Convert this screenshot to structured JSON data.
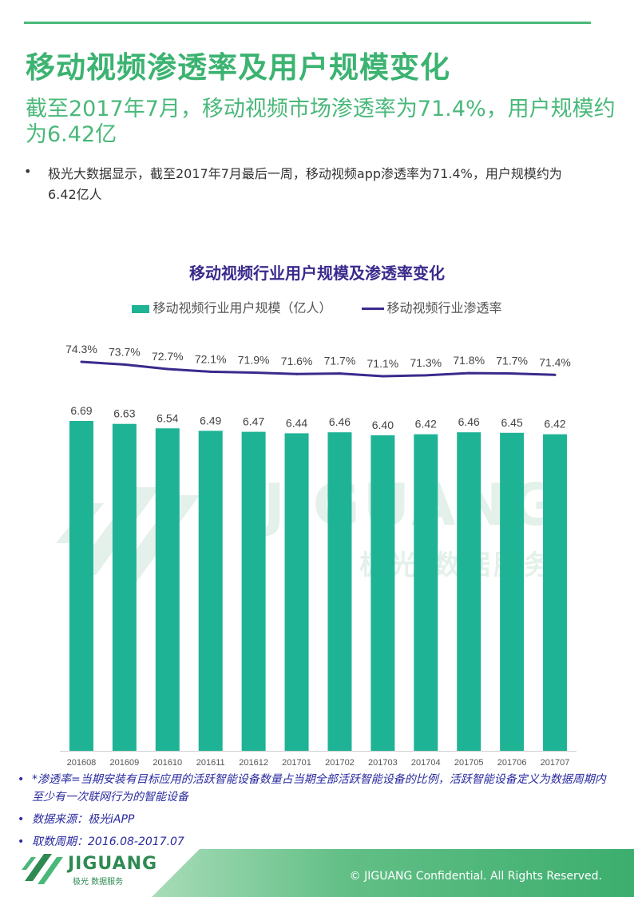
{
  "page": {
    "title": "移动视频渗透率及用户规模变化",
    "headline": "截至2017年7月，移动视频市场渗透率为71.4%，用户规模约为6.42亿",
    "bullet": "极光大数据显示，截至2017年7月最后一周，移动视频app渗透率为71.4%，用户规模约为6.42亿人"
  },
  "chart_data": {
    "type": "bar",
    "title": "移动视频行业用户规模及渗透率变化",
    "categories": [
      "201608",
      "201609",
      "201610",
      "201611",
      "201612",
      "201701",
      "201702",
      "201703",
      "201704",
      "201705",
      "201706",
      "201707"
    ],
    "series": [
      {
        "name": "移动视频行业用户规模（亿人）",
        "type": "bar",
        "color": "#1fb396",
        "values": [
          6.69,
          6.63,
          6.54,
          6.49,
          6.47,
          6.44,
          6.46,
          6.4,
          6.42,
          6.46,
          6.45,
          6.42
        ],
        "labels": [
          "6.69",
          "6.63",
          "6.54",
          "6.49",
          "6.47",
          "6.44",
          "6.46",
          "6.40",
          "6.42",
          "6.46",
          "6.45",
          "6.42"
        ]
      },
      {
        "name": "移动视频行业渗透率",
        "type": "line",
        "color": "#3a2a8c",
        "values": [
          74.3,
          73.7,
          72.7,
          72.1,
          71.9,
          71.6,
          71.7,
          71.1,
          71.3,
          71.8,
          71.7,
          71.4
        ],
        "labels": [
          "74.3%",
          "73.7%",
          "72.7%",
          "72.1%",
          "71.9%",
          "71.6%",
          "71.7%",
          "71.1%",
          "71.3%",
          "71.8%",
          "71.7%",
          "71.4%"
        ]
      }
    ],
    "legend_position": "top",
    "grid": false
  },
  "notes": [
    "*渗透率=当期安装有目标应用的活跃智能设备数量占当期全部活跃智能设备的比例，活跃智能设备定义为数据周期内至少有一次联网行为的智能设备",
    "数据来源：极光iAPP",
    "取数周期：2016.08-2017.07"
  ],
  "watermark": {
    "brand": "JIGUANG",
    "sub": "极光 数据服务"
  },
  "footer": {
    "logo_text": "JIGUANG",
    "logo_sub": "极光 数据服务",
    "copyright": "© JIGUANG  Confidential. All Rights Reserved."
  },
  "colors": {
    "accent": "#3cb371",
    "bar": "#1fb396",
    "line": "#3a2a8c",
    "note": "#2a2aa0"
  }
}
